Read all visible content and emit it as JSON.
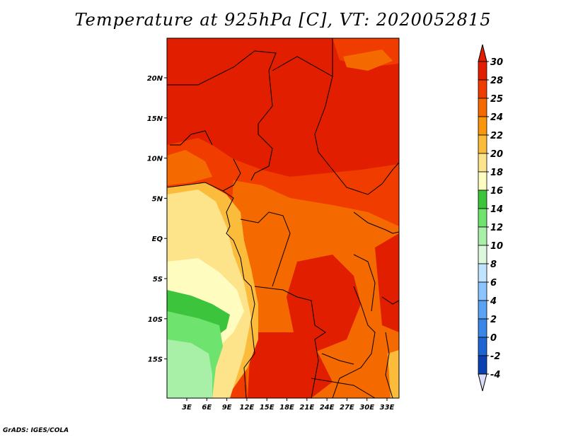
{
  "title": "Temperature at 925hPa [C], VT: 2020052815",
  "credit": "GrADS: IGES/COLA",
  "map": {
    "lat_labels": [
      "20N",
      "15N",
      "10N",
      "5N",
      "EQ",
      "5S",
      "10S",
      "15S"
    ],
    "lon_labels": [
      "3E",
      "6E",
      "9E",
      "12E",
      "15E",
      "18E",
      "21E",
      "24E",
      "27E",
      "30E",
      "33E"
    ]
  },
  "colorbar": {
    "labels": [
      "30",
      "28",
      "25",
      "24",
      "22",
      "20",
      "18",
      "16",
      "14",
      "12",
      "10",
      "8",
      "6",
      "4",
      "2",
      "0",
      "-2",
      "-4"
    ],
    "colors": [
      "#e11e00",
      "#f13c00",
      "#f56a00",
      "#f9960c",
      "#fbbc3c",
      "#fde38a",
      "#fffcc0",
      "#3cc43c",
      "#6ee46e",
      "#a8f0a8",
      "#dcf8dc",
      "#c0e4ff",
      "#8cc4ff",
      "#5aa2f4",
      "#3a86e6",
      "#1e64d2",
      "#0a40b0",
      "#062c8c",
      "#08106a",
      "#dcdcf8"
    ],
    "top_color": "#e11e00",
    "bottom_color": "#dcdcf8"
  },
  "colors": {
    "hot": "#e11e00",
    "warm": "#f13c00",
    "orange": "#f56a00",
    "amber": "#fbbc3c",
    "yellow": "#fde38a",
    "pale": "#fffcc0",
    "green": "#3cc43c",
    "lightgreen": "#6ee46e",
    "palegreen": "#a8f0a8"
  }
}
